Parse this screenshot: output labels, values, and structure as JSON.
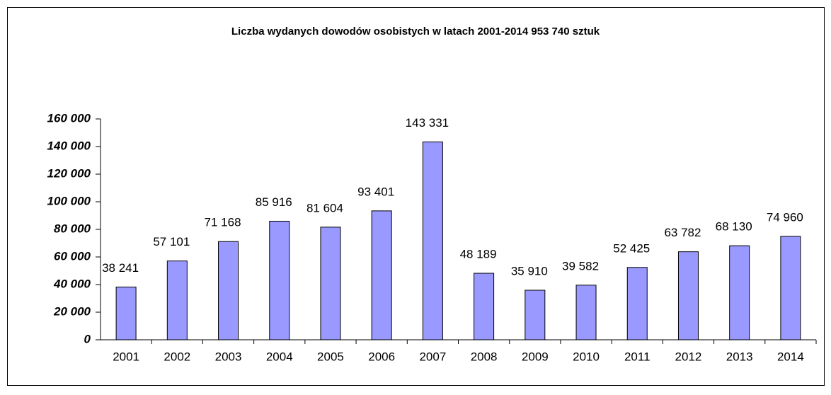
{
  "chart_data": {
    "type": "bar",
    "title": "Liczba wydanych dowodów osobistych w latach 2001-2014   953 740 sztuk",
    "categories": [
      "2001",
      "2002",
      "2003",
      "2004",
      "2005",
      "2006",
      "2007",
      "2008",
      "2009",
      "2010",
      "2011",
      "2012",
      "2013",
      "2014"
    ],
    "values": [
      38241,
      57101,
      71168,
      85916,
      81604,
      93401,
      143331,
      48189,
      35910,
      39582,
      52425,
      63782,
      68130,
      74960
    ],
    "value_labels": [
      "38 241",
      "57 101",
      "71 168",
      "85 916",
      "81 604",
      "93 401",
      "143 331",
      "48 189",
      "35 910",
      "39 582",
      "52 425",
      "63 782",
      "68 130",
      "74 960"
    ],
    "color": "#9999ff",
    "ylim": [
      0,
      160000
    ],
    "yticks": [
      {
        "value": 0,
        "label": "0"
      },
      {
        "value": 20000,
        "label": "20 000"
      },
      {
        "value": 40000,
        "label": "40 000"
      },
      {
        "value": 60000,
        "label": "60 000"
      },
      {
        "value": 80000,
        "label": "80 000"
      },
      {
        "value": 100000,
        "label": "100 000"
      },
      {
        "value": 120000,
        "label": "120 000"
      },
      {
        "value": 140000,
        "label": "140 000"
      },
      {
        "value": 160000,
        "label": "160 000"
      }
    ],
    "grid": false
  }
}
